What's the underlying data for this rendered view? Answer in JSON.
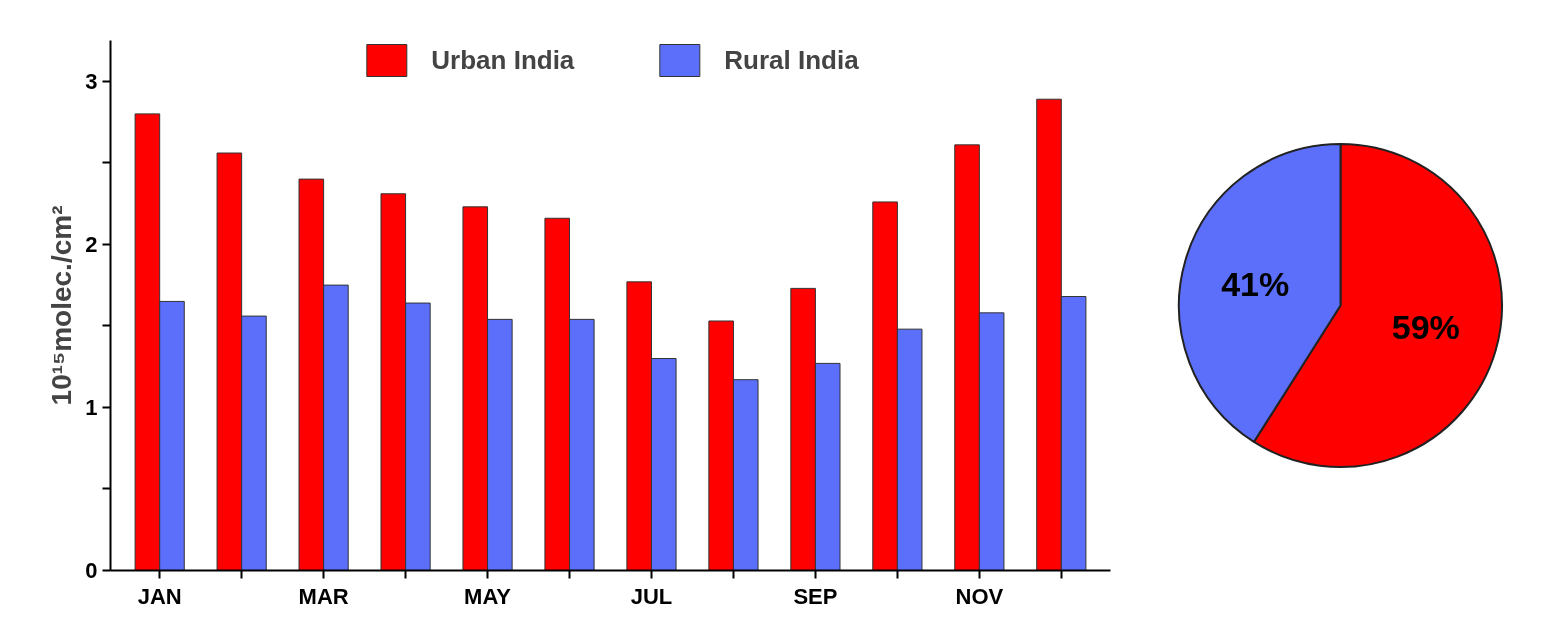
{
  "chart_data": [
    {
      "type": "bar",
      "ylabel": "10¹⁵molec./cm²",
      "categories": [
        "JAN",
        null,
        "MAR",
        null,
        "MAY",
        null,
        "JUL",
        null,
        "SEP",
        null,
        "NOV",
        null
      ],
      "series": [
        {
          "name": "Urban India",
          "color": "#ff0000",
          "values": [
            2.8,
            2.56,
            2.4,
            2.31,
            2.23,
            2.16,
            1.77,
            1.53,
            1.73,
            2.26,
            2.61,
            2.89
          ]
        },
        {
          "name": "Rural India",
          "color": "#5b6ffa",
          "values": [
            1.65,
            1.56,
            1.75,
            1.64,
            1.54,
            1.54,
            1.3,
            1.17,
            1.27,
            1.48,
            1.58,
            1.68
          ]
        }
      ],
      "ylim": [
        0,
        3.25
      ],
      "yticks": [
        0,
        {
          "value": 0.5,
          "label": null
        },
        1,
        {
          "value": 1.5,
          "label": null
        },
        2,
        {
          "value": 2.5,
          "label": null
        },
        3
      ],
      "grid": false,
      "legend": "top"
    },
    {
      "type": "pie",
      "categories": [
        null,
        null
      ],
      "values": [
        59,
        41
      ],
      "colors": [
        "#ff0000",
        "#5b6ffa"
      ],
      "value_labels": [
        "59%",
        "41%"
      ]
    }
  ]
}
